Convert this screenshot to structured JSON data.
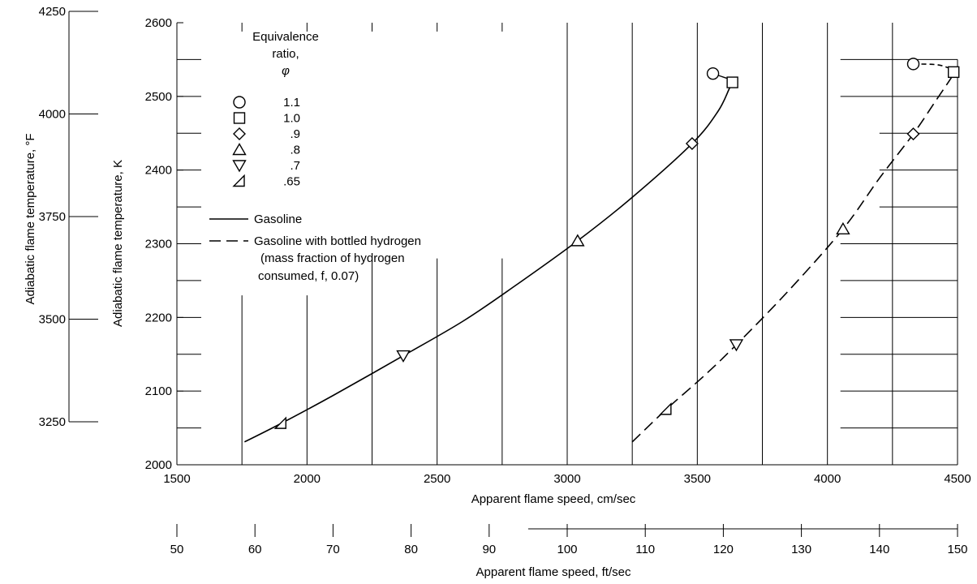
{
  "chart_data": {
    "type": "line",
    "title": "",
    "xlabel": "Apparent flame speed, cm/sec",
    "ylabel": "Adiabatic flame temperature, K",
    "xlim": [
      1500,
      4500
    ],
    "ylim": [
      2000,
      2600
    ],
    "xticks": [
      1500,
      2000,
      2500,
      3000,
      3500,
      4000,
      4500
    ],
    "yticks": [
      2000,
      2100,
      2200,
      2300,
      2400,
      2500,
      2600
    ],
    "grid": true,
    "secondary_x_axis": {
      "label": "Apparent flame speed, ft/sec",
      "ticks": [
        50,
        60,
        70,
        80,
        90,
        100,
        110,
        120,
        130,
        140,
        150
      ]
    },
    "secondary_y_axis": {
      "label": "Adiabatic flame temperature, °F",
      "ticks": [
        3250,
        3500,
        3750,
        4000,
        4250
      ]
    },
    "legend": {
      "title_lines": [
        "Equivalence",
        "ratio,",
        "φ"
      ],
      "markers": [
        {
          "symbol": "circle",
          "label": "1.1"
        },
        {
          "symbol": "square",
          "label": "1.0"
        },
        {
          "symbol": "diamond",
          "label": ".9"
        },
        {
          "symbol": "triangle-up",
          "label": ".8"
        },
        {
          "symbol": "triangle-down",
          "label": ".7"
        },
        {
          "symbol": "triangle-flag",
          "label": ".65"
        }
      ],
      "lines": [
        {
          "style": "solid",
          "label": "Gasoline"
        },
        {
          "style": "dashed",
          "label": "Gasoline with bottled hydrogen",
          "note_lines": [
            "(mass fraction of hydrogen",
            "consumed, f, 0.07)"
          ]
        }
      ],
      "placement": "upper-left"
    },
    "series": [
      {
        "name": "Gasoline",
        "style": "solid",
        "curve": [
          [
            1760,
            2031
          ],
          [
            1900,
            2056
          ],
          [
            2100,
            2094
          ],
          [
            2370,
            2148
          ],
          [
            2600,
            2195
          ],
          [
            2800,
            2243
          ],
          [
            3040,
            2304
          ],
          [
            3250,
            2363
          ],
          [
            3480,
            2436
          ],
          [
            3580,
            2480
          ],
          [
            3625,
            2512
          ],
          [
            3640,
            2519
          ]
        ],
        "points": [
          {
            "x": 3560,
            "y": 2531,
            "symbol": "circle"
          },
          {
            "x": 3635,
            "y": 2519,
            "symbol": "square"
          },
          {
            "x": 3480,
            "y": 2436,
            "symbol": "diamond"
          },
          {
            "x": 3040,
            "y": 2304,
            "symbol": "triangle-up"
          },
          {
            "x": 2370,
            "y": 2148,
            "symbol": "triangle-down"
          },
          {
            "x": 1900,
            "y": 2056,
            "symbol": "triangle-flag"
          }
        ]
      },
      {
        "name": "Gasoline with bottled hydrogen",
        "style": "dashed",
        "curve": [
          [
            3250,
            2031
          ],
          [
            3380,
            2075
          ],
          [
            3530,
            2122
          ],
          [
            3650,
            2163
          ],
          [
            3850,
            2236
          ],
          [
            4060,
            2320
          ],
          [
            4200,
            2389
          ],
          [
            4330,
            2449
          ],
          [
            4420,
            2496
          ],
          [
            4470,
            2522
          ],
          [
            4490,
            2534
          ]
        ],
        "curve_top": [
          [
            4330,
            2544
          ],
          [
            4420,
            2543
          ],
          [
            4470,
            2538
          ],
          [
            4490,
            2534
          ]
        ],
        "points": [
          {
            "x": 4330,
            "y": 2544,
            "symbol": "circle"
          },
          {
            "x": 4485,
            "y": 2533,
            "symbol": "square"
          },
          {
            "x": 4330,
            "y": 2449,
            "symbol": "diamond"
          },
          {
            "x": 4060,
            "y": 2320,
            "symbol": "triangle-up"
          },
          {
            "x": 3650,
            "y": 2163,
            "symbol": "triangle-down"
          },
          {
            "x": 3380,
            "y": 2075,
            "symbol": "triangle-flag"
          }
        ]
      }
    ]
  }
}
